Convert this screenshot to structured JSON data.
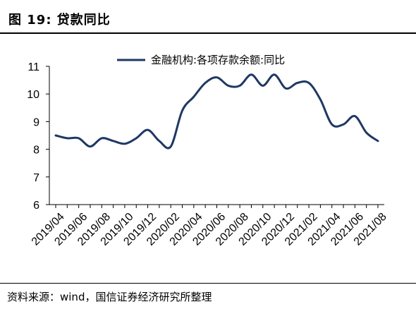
{
  "figure": {
    "title": "图 19:  贷款同比",
    "source": "资料来源：wind，国信证券经济研究所整理"
  },
  "chart_data": {
    "type": "line",
    "legend_position": "top-center",
    "grid": false,
    "ylim": [
      6,
      11
    ],
    "yticks": [
      6,
      7,
      8,
      9,
      10,
      11
    ],
    "xtick_labels": [
      "2019/04",
      "2019/06",
      "2019/08",
      "2019/10",
      "2019/12",
      "2020/02",
      "2020/04",
      "2020/06",
      "2020/08",
      "2020/10",
      "2020/12",
      "2021/02",
      "2021/04",
      "2021/06",
      "2021/08"
    ],
    "series": [
      {
        "name": "金融机构:各项存款余额:同比",
        "color": "#1f3864",
        "x": [
          "2019/04",
          "2019/05",
          "2019/06",
          "2019/07",
          "2019/08",
          "2019/09",
          "2019/10",
          "2019/11",
          "2019/12",
          "2020/01",
          "2020/02",
          "2020/03",
          "2020/04",
          "2020/05",
          "2020/06",
          "2020/07",
          "2020/08",
          "2020/09",
          "2020/10",
          "2020/11",
          "2020/12",
          "2021/01",
          "2021/02",
          "2021/03",
          "2021/04",
          "2021/05",
          "2021/06",
          "2021/07",
          "2021/08"
        ],
        "values": [
          8.5,
          8.4,
          8.4,
          8.1,
          8.4,
          8.3,
          8.2,
          8.4,
          8.7,
          8.3,
          8.1,
          9.4,
          9.9,
          10.4,
          10.6,
          10.3,
          10.3,
          10.7,
          10.3,
          10.7,
          10.2,
          10.4,
          10.4,
          9.8,
          8.9,
          8.9,
          9.2,
          8.6,
          8.3
        ]
      }
    ]
  }
}
